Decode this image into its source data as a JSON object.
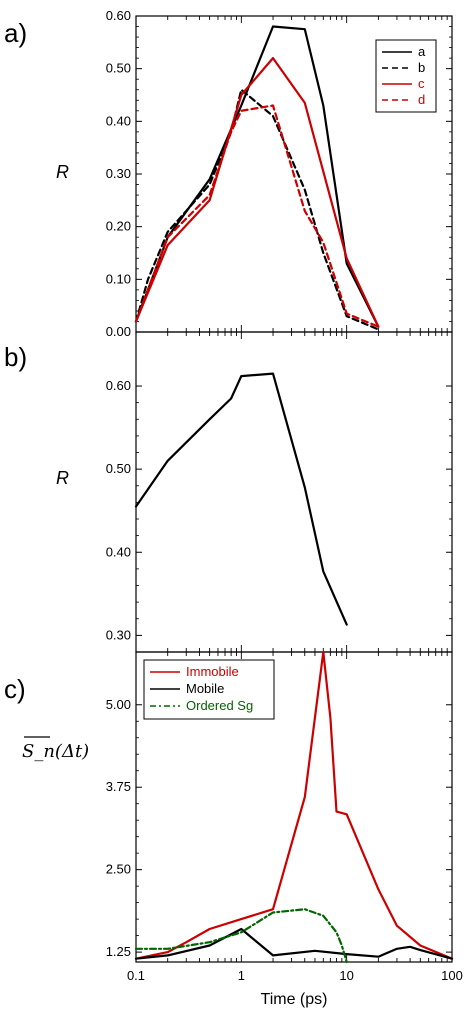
{
  "chart_data": [
    {
      "type": "line",
      "panel": "a)",
      "ylabel": "R",
      "xlabel": "",
      "xscale": "log",
      "xlim": [
        0.1,
        100
      ],
      "ylim": [
        0.0,
        0.6
      ],
      "yticks": [
        "0.00",
        "0.10",
        "0.20",
        "0.30",
        "0.40",
        "0.50",
        "0.60"
      ],
      "ytick_values": [
        0.0,
        0.1,
        0.2,
        0.3,
        0.4,
        0.5,
        0.6
      ],
      "legend_position": "top-right",
      "series": [
        {
          "name": "a",
          "color": "#000000",
          "dash": "solid",
          "x": [
            0.1,
            0.2,
            0.5,
            1,
            2,
            4,
            6,
            10,
            20
          ],
          "y": [
            0.02,
            0.18,
            0.29,
            0.43,
            0.58,
            0.575,
            0.43,
            0.13,
            0.01
          ]
        },
        {
          "name": "b",
          "color": "#000000",
          "dash": "dashed",
          "x": [
            0.1,
            0.13,
            0.2,
            0.5,
            0.8,
            1,
            2,
            4,
            6,
            10,
            20
          ],
          "y": [
            0.02,
            0.1,
            0.19,
            0.28,
            0.38,
            0.46,
            0.41,
            0.27,
            0.15,
            0.03,
            0.005
          ]
        },
        {
          "name": "c",
          "color": "#cc0000",
          "dash": "solid",
          "x": [
            0.1,
            0.2,
            0.5,
            1,
            2,
            4,
            10,
            20
          ],
          "y": [
            0.02,
            0.165,
            0.25,
            0.45,
            0.52,
            0.435,
            0.14,
            0.01
          ]
        },
        {
          "name": "d",
          "color": "#cc0000",
          "dash": "dashed",
          "x": [
            0.1,
            0.2,
            0.5,
            0.8,
            1,
            2,
            4,
            6,
            10,
            20
          ],
          "y": [
            0.02,
            0.18,
            0.26,
            0.38,
            0.42,
            0.43,
            0.23,
            0.17,
            0.035,
            0.01
          ]
        }
      ]
    },
    {
      "type": "line",
      "panel": "b)",
      "ylabel": "R",
      "xlabel": "",
      "xscale": "log",
      "xlim": [
        0.1,
        100
      ],
      "ylim": [
        0.28,
        0.665
      ],
      "yticks": [
        "0.30",
        "0.40",
        "0.50",
        "0.60"
      ],
      "ytick_values": [
        0.3,
        0.4,
        0.5,
        0.6
      ],
      "series": [
        {
          "name": "",
          "color": "#000000",
          "dash": "solid",
          "x": [
            0.1,
            0.2,
            0.5,
            0.8,
            1,
            2,
            4,
            6,
            10
          ],
          "y": [
            0.455,
            0.51,
            0.56,
            0.585,
            0.612,
            0.615,
            0.478,
            0.377,
            0.313
          ]
        }
      ]
    },
    {
      "type": "line",
      "panel": "c)",
      "ylabel": "S_n(Δt)",
      "xlabel": "Time (ps)",
      "xscale": "log",
      "xlim": [
        0.1,
        100
      ],
      "ylim": [
        1.1,
        5.8
      ],
      "xticks": [
        "0.1",
        "1",
        "10",
        "100"
      ],
      "xtick_values": [
        0.1,
        1,
        10,
        100
      ],
      "yticks": [
        "1.25",
        "2.50",
        "3.75",
        "5.00"
      ],
      "ytick_values": [
        1.25,
        2.5,
        3.75,
        5.0
      ],
      "legend_position": "top-left",
      "series": [
        {
          "name": "Immobile",
          "color": "#cc0000",
          "dash": "solid",
          "x": [
            0.1,
            0.2,
            0.3,
            0.5,
            1,
            2,
            4,
            6,
            7,
            8,
            10,
            20,
            30,
            50,
            100
          ],
          "y": [
            1.15,
            1.25,
            1.4,
            1.6,
            1.75,
            1.9,
            3.6,
            5.8,
            4.8,
            3.38,
            3.34,
            2.2,
            1.65,
            1.35,
            1.15
          ]
        },
        {
          "name": "Mobile",
          "color": "#000000",
          "dash": "solid",
          "x": [
            0.1,
            0.2,
            0.5,
            1,
            2,
            5,
            10,
            20,
            30,
            40,
            50,
            100
          ],
          "y": [
            1.15,
            1.2,
            1.35,
            1.6,
            1.2,
            1.27,
            1.22,
            1.18,
            1.3,
            1.33,
            1.28,
            1.15
          ]
        },
        {
          "name": "Ordered Sg",
          "color": "#006600",
          "dash": "dashdot",
          "x": [
            0.1,
            0.2,
            0.5,
            1,
            2,
            4,
            6,
            8,
            9,
            10
          ],
          "y": [
            1.3,
            1.3,
            1.4,
            1.55,
            1.85,
            1.9,
            1.8,
            1.55,
            1.35,
            1.1
          ]
        }
      ]
    }
  ]
}
